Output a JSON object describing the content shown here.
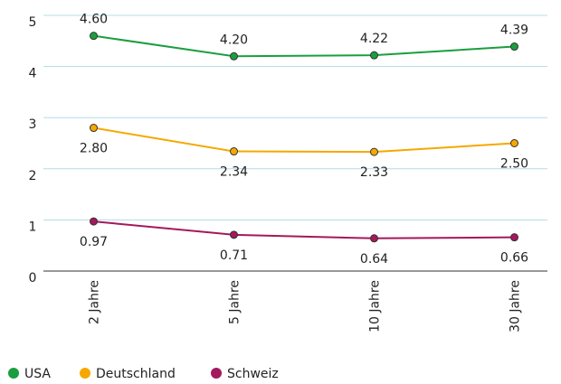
{
  "chart_data": {
    "type": "line",
    "categories": [
      "2 Jahre",
      "5 Jahre",
      "10 Jahre",
      "30 Jahre"
    ],
    "series": [
      {
        "name": "USA",
        "color": "#1a9e3f",
        "values": [
          4.6,
          4.2,
          4.22,
          4.39
        ],
        "value_labels": [
          "4.60",
          "4.20",
          "4.22",
          "4.39"
        ]
      },
      {
        "name": "Deutschland",
        "color": "#f5a800",
        "values": [
          2.8,
          2.34,
          2.33,
          2.5
        ],
        "value_labels": [
          "2.80",
          "2.34",
          "2.33",
          "2.50"
        ]
      },
      {
        "name": "Schweiz",
        "color": "#a3195b",
        "values": [
          0.97,
          0.71,
          0.64,
          0.66
        ],
        "value_labels": [
          "0.97",
          "0.71",
          "0.64",
          "0.66"
        ]
      }
    ],
    "ylim": [
      0,
      5
    ],
    "yticks": [
      0,
      1,
      2,
      3,
      4,
      5
    ],
    "grid": true
  }
}
